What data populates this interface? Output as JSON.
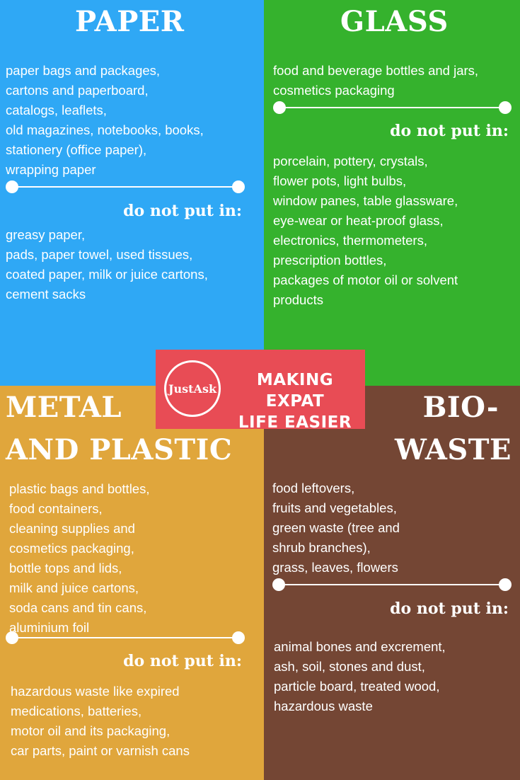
{
  "paper": {
    "title": "PAPER",
    "items": [
      "paper bags and packages,",
      "cartons and paperboard,",
      "catalogs, leaflets,",
      "old magazines, notebooks, books,",
      "stationery (office paper),",
      "wrapping paper"
    ],
    "do_not_label": "do not put in:",
    "not_items": [
      "greasy paper,",
      "pads, paper towel, used tissues,",
      "coated paper, milk or juice cartons,",
      "cement sacks"
    ]
  },
  "glass": {
    "title": "GLASS",
    "items": [
      "food and beverage bottles and jars,",
      "cosmetics packaging"
    ],
    "do_not_label": "do not put in:",
    "not_items": [
      "porcelain, pottery, crystals,",
      "flower pots, light bulbs,",
      "window panes, table glassware,",
      "eye-wear or heat-proof glass,",
      "electronics, thermometers,",
      "prescription bottles,",
      "packages of motor oil or solvent",
      "products"
    ]
  },
  "metal": {
    "title_line1": "METAL",
    "title_line2": "AND PLASTIC",
    "items": [
      "plastic bags and bottles,",
      "food containers,",
      "cleaning supplies and",
      "cosmetics packaging,",
      "bottle tops and lids,",
      "milk and juice cartons,",
      "soda cans and tin cans,",
      "aluminium foil"
    ],
    "do_not_label": "do not put in:",
    "not_items": [
      "hazardous waste like expired",
      "medications, batteries,",
      "motor oil and its packaging,",
      "car parts, paint or varnish cans"
    ]
  },
  "bio": {
    "title_line1": "BIO-",
    "title_line2": "WASTE",
    "items": [
      "food leftovers,",
      "fruits and vegetables,",
      "green waste (tree and",
      "shrub branches),",
      "grass, leaves, flowers"
    ],
    "do_not_label": "do not put in:",
    "not_items": [
      "animal bones and excrement,",
      "ash, soil, stones and dust,",
      "particle board, treated wood,",
      "hazardous waste"
    ]
  },
  "banner": {
    "logo_text": "JustAsk",
    "line1": "MAKING EXPAT",
    "line2": "LIFE EASIER"
  },
  "colors": {
    "paper": "#2fa8f5",
    "glass": "#35b22d",
    "metal": "#e0a63c",
    "bio": "#744634",
    "banner": "#e84c55"
  }
}
